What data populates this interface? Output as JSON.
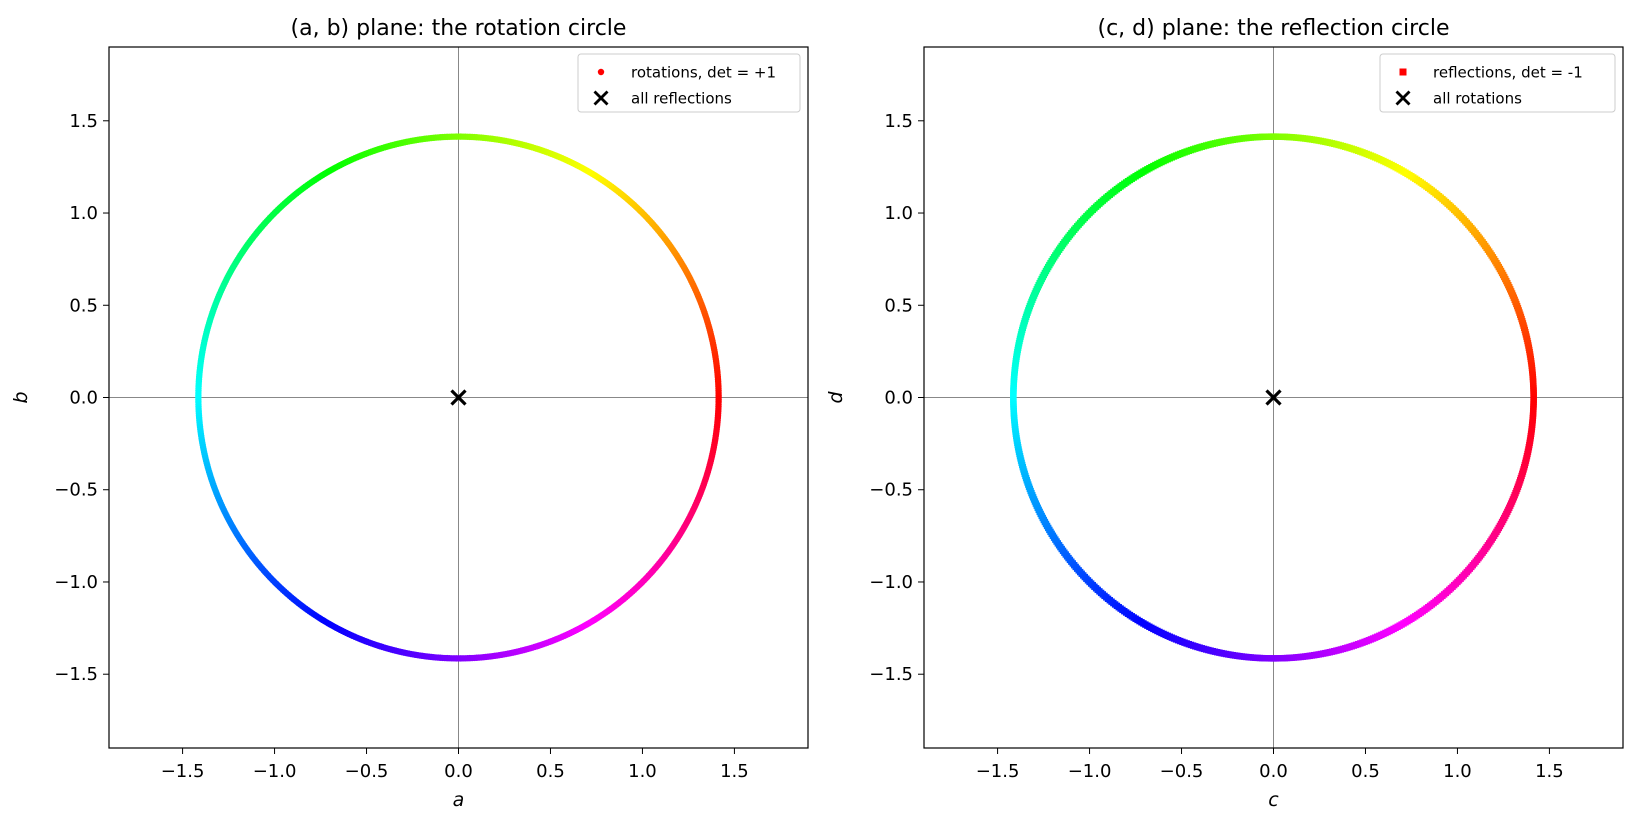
{
  "chart_data": [
    {
      "type": "scatter",
      "title": "(a, b) plane: the rotation circle",
      "xlabel": "a",
      "ylabel": "b",
      "xlim": [
        -1.9,
        1.9
      ],
      "ylim": [
        -1.9,
        1.9
      ],
      "xticks": [
        -1.5,
        -1.0,
        -0.5,
        0.0,
        0.5,
        1.0,
        1.5
      ],
      "yticks": [
        -1.5,
        -1.0,
        -0.5,
        0.0,
        0.5,
        1.0,
        1.5
      ],
      "xtick_labels": [
        "−1.5",
        "−1.0",
        "−0.5",
        "0.0",
        "0.5",
        "1.0",
        "1.5"
      ],
      "ytick_labels": [
        "−1.5",
        "−1.0",
        "−0.5",
        "0.0",
        "0.5",
        "1.0",
        "1.5"
      ],
      "grid": false,
      "reference_lines": {
        "x": 0,
        "y": 0,
        "color": "#888888"
      },
      "legend_position": "top-right",
      "series": [
        {
          "name": "rotations, det = +1",
          "marker": "circle",
          "legend_color": "#ff0000",
          "shape": "circle",
          "center": [
            0,
            0
          ],
          "radius": 1.4142,
          "color_mapping": "hue by angle (red at angle 0, through yellow, green, cyan, blue, magenta)",
          "point_count": 720
        },
        {
          "name": "all reflections",
          "marker": "x",
          "color": "#000000",
          "points": [
            [
              0,
              0
            ]
          ]
        }
      ]
    },
    {
      "type": "scatter",
      "title": "(c, d) plane: the reflection circle",
      "xlabel": "c",
      "ylabel": "d",
      "xlim": [
        -1.9,
        1.9
      ],
      "ylim": [
        -1.9,
        1.9
      ],
      "xticks": [
        -1.5,
        -1.0,
        -0.5,
        0.0,
        0.5,
        1.0,
        1.5
      ],
      "yticks": [
        -1.5,
        -1.0,
        -0.5,
        0.0,
        0.5,
        1.0,
        1.5
      ],
      "xtick_labels": [
        "−1.5",
        "−1.0",
        "−0.5",
        "0.0",
        "0.5",
        "1.0",
        "1.5"
      ],
      "ytick_labels": [
        "−1.5",
        "−1.0",
        "−0.5",
        "0.0",
        "0.5",
        "1.0",
        "1.5"
      ],
      "grid": false,
      "reference_lines": {
        "x": 0,
        "y": 0,
        "color": "#888888"
      },
      "legend_position": "top-right",
      "series": [
        {
          "name": "reflections, det = -1",
          "marker": "square",
          "legend_color": "#ff0000",
          "shape": "circle",
          "center": [
            0,
            0
          ],
          "radius": 1.4142,
          "color_mapping": "hue by angle (red at angle 0, through yellow, green, cyan, blue, magenta)",
          "point_count": 720
        },
        {
          "name": "all rotations",
          "marker": "x",
          "color": "#000000",
          "points": [
            [
              0,
              0
            ]
          ]
        }
      ]
    }
  ]
}
